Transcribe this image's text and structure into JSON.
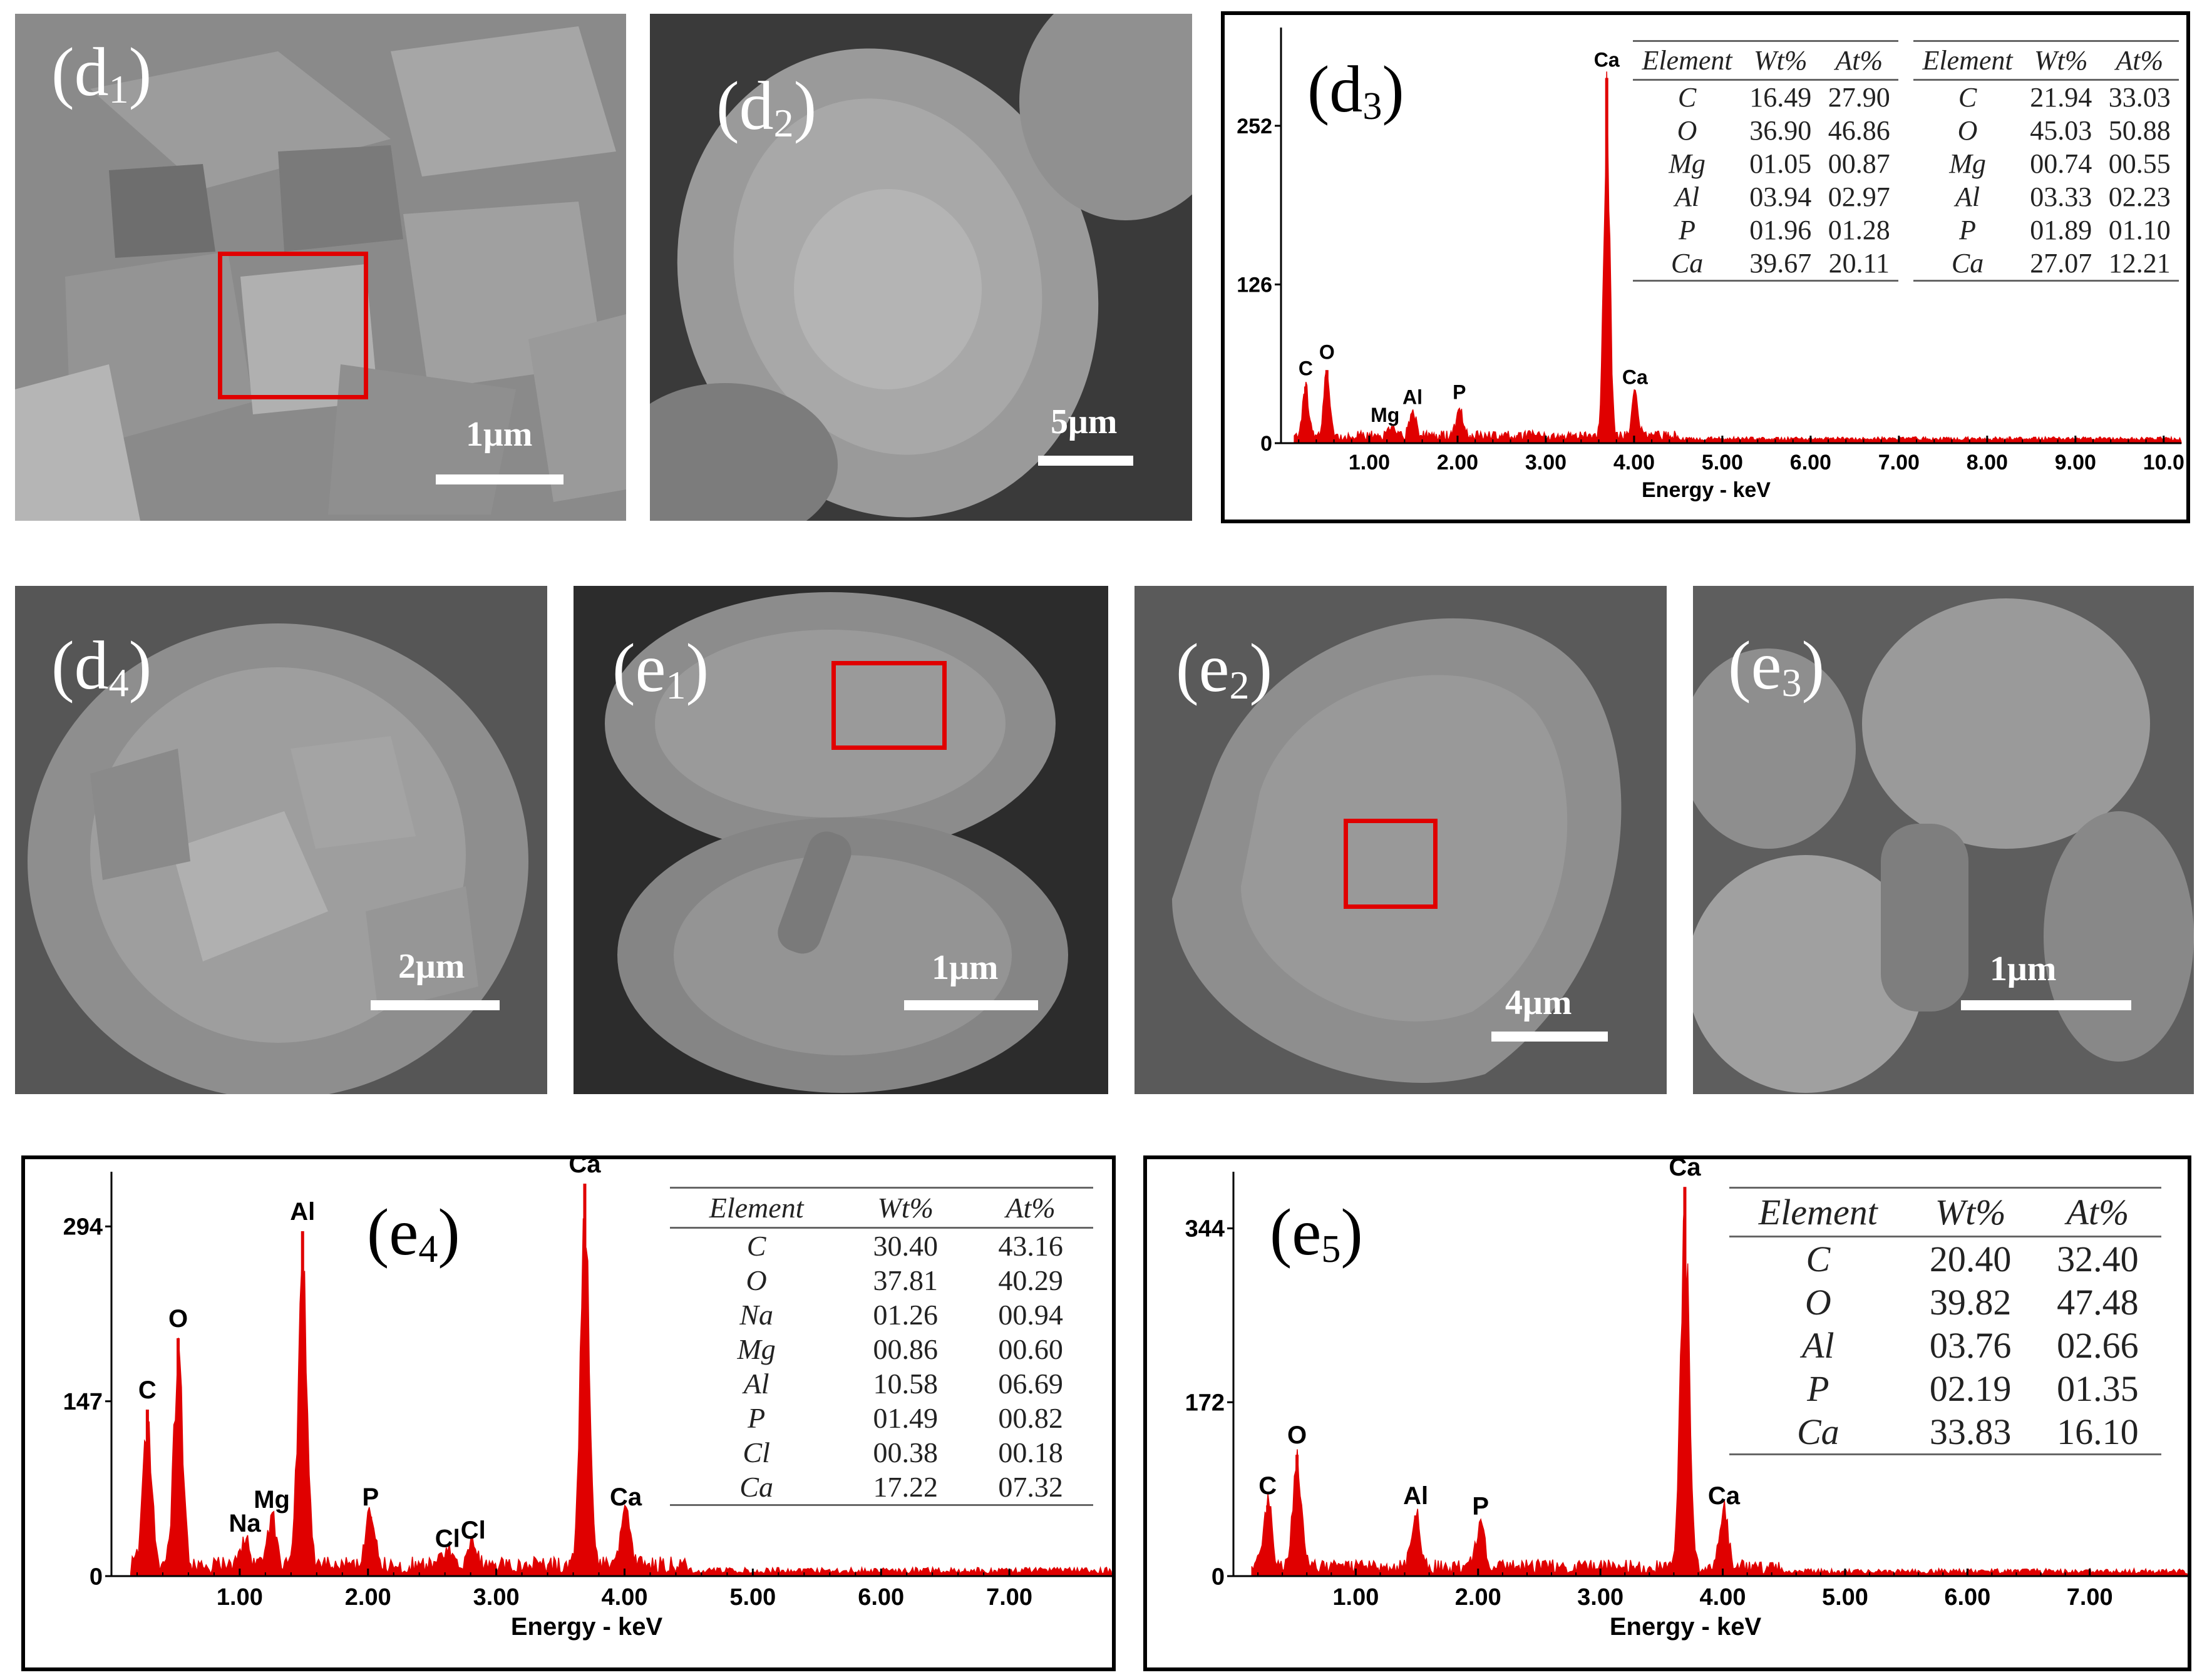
{
  "panels": {
    "d1": {
      "label_main": "(d",
      "label_sub": "1",
      "label_end": ")",
      "scale": "1μm"
    },
    "d2": {
      "label_main": "(d",
      "label_sub": "2",
      "label_end": ")",
      "scale": "5μm"
    },
    "d3": {
      "label_main": "(d",
      "label_sub": "3",
      "label_end": ")"
    },
    "d4": {
      "label_main": "(d",
      "label_sub": "4",
      "label_end": ")",
      "scale": "2μm"
    },
    "e1": {
      "label_main": "(e",
      "label_sub": "1",
      "label_end": ")",
      "scale": "1μm"
    },
    "e2": {
      "label_main": "(e",
      "label_sub": "2",
      "label_end": ")",
      "scale": "4μm"
    },
    "e3": {
      "label_main": "(e",
      "label_sub": "3",
      "label_end": ")",
      "scale": "1μm"
    },
    "e4": {
      "label_main": "(e",
      "label_sub": "4",
      "label_end": ")"
    },
    "e5": {
      "label_main": "(e",
      "label_sub": "5",
      "label_end": ")"
    }
  },
  "colors": {
    "spectrum": "#e00000",
    "roi": "#e00000",
    "sem_bg": "#7d7d7d"
  },
  "chart_data": [
    {
      "id": "d3",
      "type": "bar",
      "xlabel": "Energy - keV",
      "xlim": [
        0,
        10.2
      ],
      "ylim": [
        0,
        330
      ],
      "xticks": [
        "1.00",
        "2.00",
        "3.00",
        "4.00",
        "5.00",
        "6.00",
        "7.00",
        "8.00",
        "9.00",
        "10.0"
      ],
      "yticks": [
        "0",
        "126",
        "252"
      ],
      "peaks": [
        {
          "x": 0.28,
          "y": 45,
          "label": "C"
        },
        {
          "x": 0.52,
          "y": 58,
          "label": "O"
        },
        {
          "x": 1.25,
          "y": 8,
          "label": "Mg"
        },
        {
          "x": 1.49,
          "y": 22,
          "label": "Al"
        },
        {
          "x": 2.02,
          "y": 26,
          "label": "P"
        },
        {
          "x": 3.69,
          "y": 290,
          "label": "Ca"
        },
        {
          "x": 4.01,
          "y": 38,
          "label": "Ca"
        }
      ],
      "tables": [
        {
          "headers": [
            "Element",
            "Wt%",
            "At%"
          ],
          "rows": [
            [
              "C",
              "16.49",
              "27.90"
            ],
            [
              "O",
              "36.90",
              "46.86"
            ],
            [
              "Mg",
              "01.05",
              "00.87"
            ],
            [
              "Al",
              "03.94",
              "02.97"
            ],
            [
              "P",
              "01.96",
              "01.28"
            ],
            [
              "Ca",
              "39.67",
              "20.11"
            ]
          ]
        },
        {
          "headers": [
            "Element",
            "Wt%",
            "At%"
          ],
          "rows": [
            [
              "C",
              "21.94",
              "33.03"
            ],
            [
              "O",
              "45.03",
              "50.88"
            ],
            [
              "Mg",
              "00.74",
              "00.55"
            ],
            [
              "Al",
              "03.33",
              "02.23"
            ],
            [
              "P",
              "01.89",
              "01.10"
            ],
            [
              "Ca",
              "27.07",
              "12.21"
            ]
          ]
        }
      ]
    },
    {
      "id": "e4",
      "type": "bar",
      "xlabel": "Energy - keV",
      "xlim": [
        0,
        7.8
      ],
      "ylim": [
        0,
        340
      ],
      "xticks": [
        "1.00",
        "2.00",
        "3.00",
        "4.00",
        "5.00",
        "6.00",
        "7.00"
      ],
      "yticks": [
        "0",
        "147",
        "294"
      ],
      "peaks": [
        {
          "x": 0.28,
          "y": 140,
          "label": "C"
        },
        {
          "x": 0.52,
          "y": 200,
          "label": "O"
        },
        {
          "x": 1.04,
          "y": 28,
          "label": "Na"
        },
        {
          "x": 1.25,
          "y": 48,
          "label": "Mg"
        },
        {
          "x": 1.49,
          "y": 290,
          "label": "Al"
        },
        {
          "x": 2.02,
          "y": 50,
          "label": "P"
        },
        {
          "x": 2.62,
          "y": 15,
          "label": "Cl"
        },
        {
          "x": 2.82,
          "y": 22,
          "label": "Cl"
        },
        {
          "x": 3.69,
          "y": 330,
          "label": "Ca"
        },
        {
          "x": 4.01,
          "y": 50,
          "label": "Ca"
        }
      ],
      "tables": [
        {
          "headers": [
            "Element",
            "Wt%",
            "At%"
          ],
          "rows": [
            [
              "C",
              "30.40",
              "43.16"
            ],
            [
              "O",
              "37.81",
              "40.29"
            ],
            [
              "Na",
              "01.26",
              "00.94"
            ],
            [
              "Mg",
              "00.86",
              "00.60"
            ],
            [
              "Al",
              "10.58",
              "06.69"
            ],
            [
              "P",
              "01.49",
              "00.82"
            ],
            [
              "Cl",
              "00.38",
              "00.18"
            ],
            [
              "Ca",
              "17.22",
              "07.32"
            ]
          ]
        }
      ]
    },
    {
      "id": "e5",
      "type": "bar",
      "xlabel": "Energy - keV",
      "xlim": [
        0,
        7.8
      ],
      "ylim": [
        0,
        400
      ],
      "xticks": [
        "1.00",
        "2.00",
        "3.00",
        "4.00",
        "5.00",
        "6.00",
        "7.00"
      ],
      "yticks": [
        "0",
        "172",
        "344"
      ],
      "peaks": [
        {
          "x": 0.28,
          "y": 70,
          "label": "C"
        },
        {
          "x": 0.52,
          "y": 120,
          "label": "O"
        },
        {
          "x": 1.49,
          "y": 60,
          "label": "Al"
        },
        {
          "x": 2.02,
          "y": 50,
          "label": "P"
        },
        {
          "x": 3.69,
          "y": 385,
          "label": "Ca"
        },
        {
          "x": 4.01,
          "y": 60,
          "label": "Ca"
        }
      ],
      "tables": [
        {
          "headers": [
            "Element",
            "Wt%",
            "At%"
          ],
          "rows": [
            [
              "C",
              "20.40",
              "32.40"
            ],
            [
              "O",
              "39.82",
              "47.48"
            ],
            [
              "Al",
              "03.76",
              "02.66"
            ],
            [
              "P",
              "02.19",
              "01.35"
            ],
            [
              "Ca",
              "33.83",
              "16.10"
            ]
          ]
        }
      ]
    }
  ]
}
